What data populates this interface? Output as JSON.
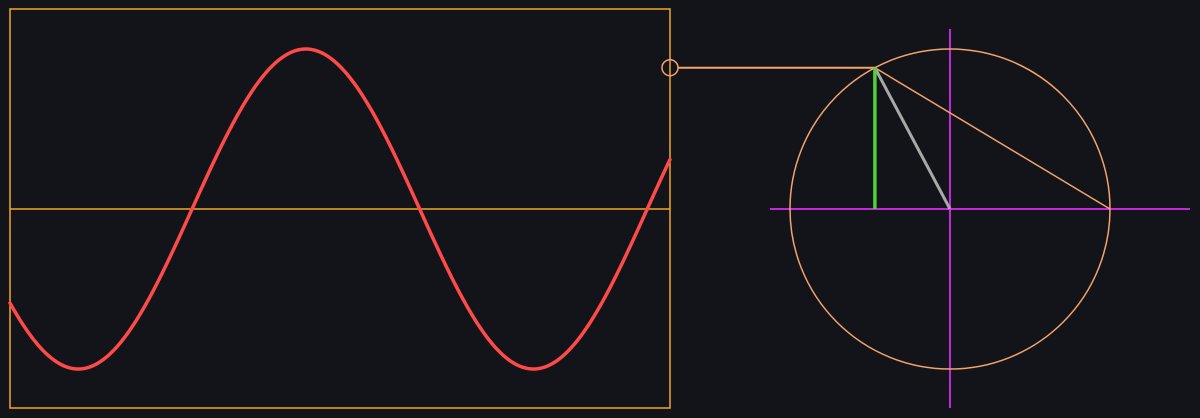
{
  "diagram": {
    "description_free": true,
    "wave": {
      "color": "#ff4a4a",
      "cycles_shown": 1.45,
      "phase_at_left_edge_deg": 216,
      "phase_at_right_edge_deg": 738
    },
    "frame_color": "#f5a623",
    "circle_color": "#f4a36b",
    "axis_color": "#c228d9",
    "sine_line_color": "#4ed13a",
    "radius_line_color": "#a8a8a8",
    "connector_color": "#f4a36b",
    "background": "#121419",
    "current_angle_deg": 118
  }
}
